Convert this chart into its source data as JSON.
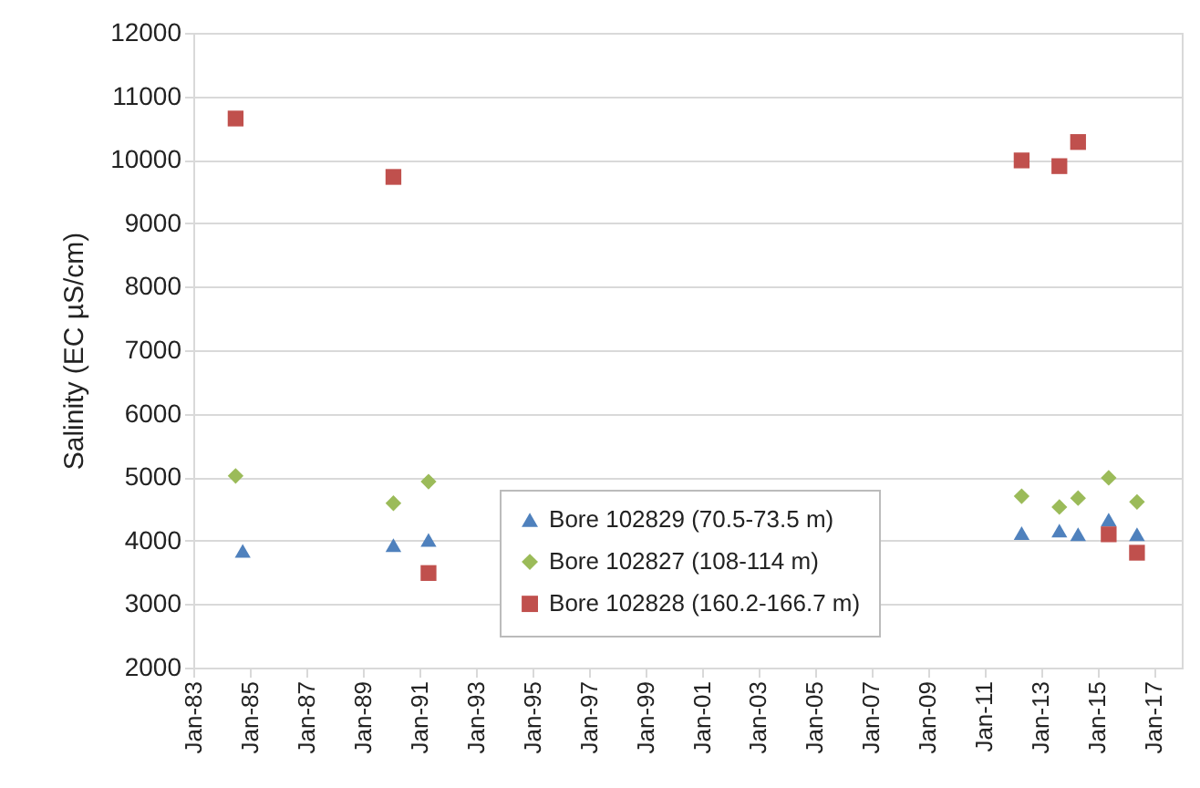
{
  "chart_data": {
    "type": "scatter",
    "ylabel": "Salinity (EC µS/cm)",
    "xlim": [
      "1983-01",
      "2018-01"
    ],
    "xticks": [
      {
        "value": "1983-01",
        "label": "Jan-83"
      },
      {
        "value": "1985-01",
        "label": "Jan-85"
      },
      {
        "value": "1987-01",
        "label": "Jan-87"
      },
      {
        "value": "1989-01",
        "label": "Jan-89"
      },
      {
        "value": "1991-01",
        "label": "Jan-91"
      },
      {
        "value": "1993-01",
        "label": "Jan-93"
      },
      {
        "value": "1995-01",
        "label": "Jan-95"
      },
      {
        "value": "1997-01",
        "label": "Jan-97"
      },
      {
        "value": "1999-01",
        "label": "Jan-99"
      },
      {
        "value": "2001-01",
        "label": "Jan-01"
      },
      {
        "value": "2003-01",
        "label": "Jan-03"
      },
      {
        "value": "2005-01",
        "label": "Jan-05"
      },
      {
        "value": "2007-01",
        "label": "Jan-07"
      },
      {
        "value": "2009-01",
        "label": "Jan-09"
      },
      {
        "value": "2011-01",
        "label": "Jan-11"
      },
      {
        "value": "2013-01",
        "label": "Jan-13"
      },
      {
        "value": "2015-01",
        "label": "Jan-15"
      },
      {
        "value": "2017-01",
        "label": "Jan-17"
      }
    ],
    "ylim": [
      2000,
      12000
    ],
    "yticks": [
      2000,
      3000,
      4000,
      5000,
      6000,
      7000,
      8000,
      9000,
      10000,
      11000,
      12000
    ],
    "grid": "y",
    "legend": "bottom",
    "series": [
      {
        "name": "Bore 102829 (70.5-73.5 m)",
        "color": "#4f81bd",
        "marker": "triangle",
        "x": [
          "1984-10",
          "1990-02",
          "1991-05",
          "2012-05",
          "2013-09",
          "2014-05",
          "2015-06",
          "2016-06"
        ],
        "values": [
          3840,
          3930,
          4010,
          4120,
          4160,
          4100,
          4330,
          4100
        ]
      },
      {
        "name": "Bore 102827 (108-114 m)",
        "color": "#9bbb59",
        "marker": "diamond",
        "x": [
          "1984-07",
          "1990-02",
          "1991-05",
          "2012-05",
          "2013-09",
          "2014-05",
          "2015-06",
          "2016-06"
        ],
        "values": [
          5020,
          4590,
          4930,
          4700,
          4530,
          4670,
          4990,
          4610
        ]
      },
      {
        "name": "Bore 102828 (160.2-166.7 m)",
        "color": "#c0504d",
        "marker": "square",
        "x": [
          "1984-07",
          "1990-02",
          "1991-05",
          "2012-05",
          "2013-09",
          "2014-05",
          "2015-06",
          "2016-06"
        ],
        "values": [
          10650,
          9730,
          3490,
          9990,
          9900,
          10280,
          4100,
          3810
        ]
      }
    ]
  }
}
